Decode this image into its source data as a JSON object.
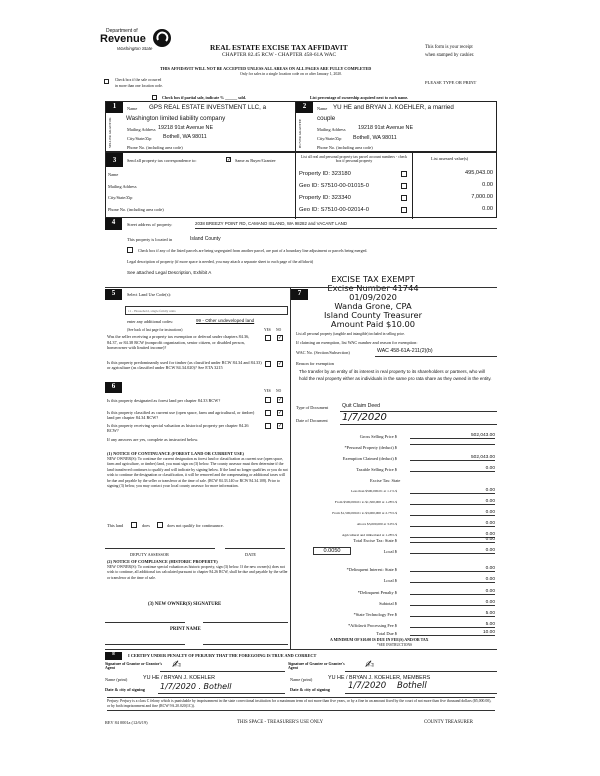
{
  "header": {
    "logo_line1": "Department of",
    "logo_line2": "Revenue",
    "logo_line3": "Washington State",
    "title": "REAL ESTATE EXCISE TAX AFFIDAVIT",
    "subtitle": "CHAPTER 82.45 RCW - CHAPTER 458-61A WAC",
    "receipt_note_1": "This form is your receipt",
    "receipt_note_2": "when stamped by cashier.",
    "warning": "THIS AFFIDAVIT WILL NOT BE ACCEPTED UNLESS ALL AREAS ON ALL PAGES ARE FULLY COMPLETED",
    "sales_note": "Only for sales in a single location code on or after January 1, 2020.",
    "multi_location_1": "Check box if the sale occurred",
    "multi_location_2": "in more than one location code.",
    "type_or_print": "PLEASE TYPE OR PRINT",
    "partial_sale": "Check box if partial sale, indicate % ______ sold.",
    "ownership_note": "List percentage of ownership acquired next to each name."
  },
  "seller": {
    "num": "1",
    "side_label": "SELLER GRANTOR",
    "name_label": "Name",
    "name_1": "GPS REAL ESTATE INVESTMENT LLC, a",
    "name_2": "Washington limited liability company",
    "address_label": "Mailing Address",
    "address": "19218 91st Avenue NE",
    "city_label": "City/State/Zip",
    "city": "Bothell, WA 98011",
    "phone_label": "Phone No. (including area code)"
  },
  "buyer": {
    "num": "2",
    "side_label": "BUYER GRANTEE",
    "name_label": "Name",
    "name_1": "YU HE and BRYAN J. KOEHLER, a married",
    "name_2": "couple",
    "address_label": "Mailing Address",
    "address": "19218 91st Avenue NE",
    "city_label": "City/State/Zip",
    "city": "Bothell, WA 98011",
    "phone_label": "Phone No. (including area code)"
  },
  "section3": {
    "num": "3",
    "send_label": "Send all property tax correspondence to:",
    "same_as_buyer": "Same as Buyer/Grantee",
    "same_checked": true,
    "name_label": "Name",
    "address_label": "Mailing Address",
    "city_label": "City/State/Zip",
    "phone_label": "Phone No. (including area code)",
    "parcels_header": "List all real and personal property tax parcel account numbers - check box if personal property",
    "assessed_header": "List assessed value(s)",
    "parcels": [
      {
        "id": "Property ID: 323180",
        "value": "495,043.00"
      },
      {
        "id": "Geo ID: S7510-00-01015-0",
        "value": "0.00"
      },
      {
        "id": "Property ID: 323340",
        "value": "7,000.00"
      },
      {
        "id": "Geo ID: S7510-00-02014-0",
        "value": "0.00"
      }
    ]
  },
  "section4": {
    "num": "4",
    "street_label": "Street address of property:",
    "street": "2038 BREEZY POINT RD, CAMANO ISLAND, WA 98282 and VACANT LAND",
    "located_label": "This property is located in",
    "county": "Island County",
    "segregated": "Check box if any of the listed parcels are being segregated from another parcel, are part of a boundary line adjustment or parcels being merged.",
    "legal_label": "Legal description of property (if more space is needed, you may attach a separate sheet to each page of the affidavit)",
    "legal": "See attached Legal Description, Exhibit A"
  },
  "stamp": {
    "line1": "EXCISE TAX EXEMPT",
    "line2": "Excise Number 41744",
    "line3": "01/09/2020",
    "line4": "Wanda Grone, CPA",
    "line5": "Island County Treasurer",
    "line6": "Amount Paid $10.00"
  },
  "section5": {
    "num": "5",
    "land_use_label": "Select Land Use Code(s):",
    "land_use": "11 - Household, single family units",
    "additional_label": "enter any additional codes:",
    "additional": "99 - Other undeveloped land",
    "see_back": "(See back of last page for instructions)",
    "yes": "YES",
    "no": "NO",
    "q1": "Was the seller receiving a property tax exemption or deferral under chapters 84.36, 84.37, or 84.38 RCW (nonprofit organization, senior citizen, or disabled person, homeowner with limited income)?",
    "q2": "Is this property predominantly used for timber (as classified under RCW 84.34 and 84.33) or agriculture (as classified under RCW 84.34.020)? See ETA 3215"
  },
  "section6": {
    "num": "6",
    "yes": "YES",
    "no": "NO",
    "q1": "Is this property designated as forest land per chapter 84.33 RCW?",
    "q2": "Is this property classified as current use (open space, farm and agricultural, or timber) land per chapter 84.34 RCW?",
    "q3": "Is this property receiving special valuation as historical property per chapter 84.26 RCW?",
    "if_yes": "If any answers are yes, complete as instructed below.",
    "notice1_title": "(1) NOTICE OF CONTINUANCE (FOREST LAND OR CURRENT USE)",
    "notice1_body": "NEW OWNER(S): To continue the current designation as forest land or classification as current use (open space, farm and agriculture, or timber) land, you must sign on (3) below. The county assessor must then determine if the land transferred continues to qualify and will indicate by signing below. If the land no longer qualifies or you do not wish to continue the designation or classification, it will be removed and the compensating or additional taxes will be due and payable by the seller or transferor at the time of sale. (RCW 84.33.140 or RCW 84.34.108). Prior to signing (3) below, you may contact your local county assessor for more information.",
    "this_land": "This land",
    "does": "does",
    "does_not": "does not qualify for continuance.",
    "deputy": "DEPUTY ASSESSOR",
    "date": "DATE",
    "notice2_title": "(2) NOTICE OF COMPLIANCE (HISTORIC PROPERTY)",
    "notice2_body": "NEW OWNER(S): To continue special valuation as historic property, sign (3) below. If the new owner(s) does not wish to continue, all additional tax calculated pursuant to chapter 84.26 RCW, shall be due and payable by the seller or transferor at the time of sale.",
    "signature_title": "(3) NEW OWNER(S) SIGNATURE",
    "print_name": "PRINT NAME"
  },
  "section7": {
    "num": "7",
    "list_label": "List all personal property (tangible and intangible) included in selling price.",
    "wac_intro": "If claiming an exemption, list WAC number and reason for exemption:",
    "wac_label": "WAC No. (Section/Subsection)",
    "wac": "WAC 458-61A-211(2)(b)",
    "reason_label": "Reason for exemption",
    "reason": "The transfer by an entity of its interest in real property to its shareholders or partners, who will hold the real property either as individuals in the same pro rata share as they owned in the entity.",
    "doc_type_label": "Type of Document",
    "doc_type": "Quit Claim Deed",
    "doc_date_label": "Date of Document",
    "doc_date": "1/7/2020"
  },
  "tax": {
    "rows": [
      {
        "label": "Gross Selling Price $",
        "value": "502,043.00"
      },
      {
        "label": "*Personal Property (deduct) $",
        "value": ""
      },
      {
        "label": "Exemption Claimed (deduct) $",
        "value": "502,043.00"
      },
      {
        "label": "Taxable Selling Price $",
        "value": "0.00"
      },
      {
        "label": "Excise Tax: State",
        "value": ""
      },
      {
        "label": "Less than $500,000.01 at 1.1% $",
        "value": "0.00"
      },
      {
        "label": "From $500,000.01 to $1,500,000 at 1.28% $",
        "value": "0.00"
      },
      {
        "label": "From $1,500,000.01 to $3,000,000 at 2.75% $",
        "value": "0.00"
      },
      {
        "label": "Above $3,000,000 at 3.0% $",
        "value": "0.00"
      },
      {
        "label": "Agricultural and timberland at 1.28% $",
        "value": "0.00"
      },
      {
        "label": "Total Excise Tax: State $",
        "value": "0.00"
      },
      {
        "label": "Local $",
        "value": "0.00"
      },
      {
        "label": "*Delinquent Interest: State $",
        "value": "0.00"
      },
      {
        "label": "Local $",
        "value": "0.00"
      },
      {
        "label": "*Delinquent Penalty $",
        "value": "0.00"
      },
      {
        "label": "Subtotal $",
        "value": "0.00"
      },
      {
        "label": "*State Technology Fee $",
        "value": "5.00"
      },
      {
        "label": "*Affidavit Processing Fee $",
        "value": "5.00"
      },
      {
        "label": "Total Due $",
        "value": "10.00"
      }
    ],
    "local_rate": "0.0050",
    "minimum": "A MINIMUM OF $10.00 IS DUE IN FEE(S) AND/OR TAX",
    "see_instructions": "*SEE INSTRUCTIONS"
  },
  "section8": {
    "num": "8",
    "certify": "I CERTIFY UNDER PENALTY OF PERJURY THAT THE FOREGOING IS TRUE AND CORRECT",
    "grantor_sig_label": "Signature of Grantor or Grantor's Agent",
    "grantee_sig_label": "Signature of Grantee or Grantee's Agent",
    "name_label": "Name (print)",
    "grantor_name": "YU HE / BRYAN J. KOEHLER",
    "grantee_name": "YU HE / BRYAN J. KOEHLER, MEMBERS",
    "date_label": "Date & city of signing",
    "grantor_date": "1/7/2020 . Bothell",
    "grantee_date": "1/7/2020    Bothell",
    "perjury": "Perjury: Perjury is a class C felony which is punishable by imprisonment in the state correctional institution for a maximum term of not more than five years, or by a fine in an amount fixed by the court of not more than five thousand dollars ($5,000.00), or by both imprisonment and fine (RCW 9A.20.020(1C))."
  },
  "footer": {
    "form_no": "REV 84 0001a (12/6/19)",
    "treasurer_use": "THIS SPACE - TREASURER'S USE ONLY",
    "county_treasurer": "COUNTY TREASURER"
  }
}
